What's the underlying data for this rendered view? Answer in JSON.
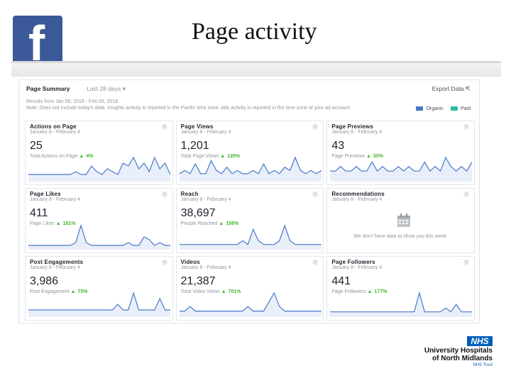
{
  "slide": {
    "title": "Page activity",
    "facebook_logo": "f"
  },
  "summary": {
    "title": "Page Summary",
    "range": "Last 28 days ▾",
    "export_label": "Export Data ⇱",
    "note": "Results from Jan 08, 2018 - Feb 05, 2018\nNote: Does not include today's data. Insights activity is reported in the Pacific time zone. Ads activity is reported in the time zone of your ad account.",
    "legend": [
      {
        "label": "Organic",
        "color": "#4a78c8"
      },
      {
        "label": "Paid",
        "color": "#2bbfa4"
      }
    ]
  },
  "cards": [
    {
      "title": "Actions on Page",
      "date": "January 8 - February 4",
      "value": "25",
      "sub": "Total Actions on Page",
      "change": "4%",
      "spark": [
        2,
        2,
        2,
        2,
        2,
        2,
        2,
        2,
        2,
        3,
        2,
        2,
        5,
        3,
        2,
        4,
        3,
        2,
        6,
        5,
        8,
        4,
        6,
        3,
        8,
        4,
        6,
        2
      ]
    },
    {
      "title": "Page Views",
      "date": "January 8 - February 4",
      "value": "1,201",
      "sub": "Total Page Views",
      "change": "120%",
      "spark": [
        2,
        3,
        2,
        5,
        2,
        2,
        6,
        3,
        2,
        4,
        2,
        3,
        2,
        2,
        3,
        2,
        5,
        2,
        3,
        2,
        4,
        3,
        7,
        3,
        2,
        3,
        2,
        3
      ]
    },
    {
      "title": "Page Previews",
      "date": "January 8 - February 4",
      "value": "43",
      "sub": "Page Previews",
      "change": "30%",
      "spark": [
        2,
        2,
        3,
        2,
        2,
        3,
        2,
        2,
        4,
        2,
        3,
        2,
        2,
        3,
        2,
        3,
        2,
        2,
        4,
        2,
        3,
        2,
        5,
        3,
        2,
        3,
        2,
        4
      ]
    },
    {
      "title": "Page Likes",
      "date": "January 8 - February 4",
      "value": "411",
      "sub": "Page Likes",
      "change": "181%",
      "spark": [
        1,
        1,
        1,
        1,
        1,
        1,
        1,
        1,
        1,
        2,
        8,
        2,
        1,
        1,
        1,
        1,
        1,
        1,
        1,
        2,
        1,
        1,
        4,
        3,
        1,
        2,
        1,
        1
      ]
    },
    {
      "title": "Reach",
      "date": "January 8 - February 4",
      "value": "38,697",
      "sub": "People Reached",
      "change": "158%",
      "spark": [
        1,
        1,
        1,
        1,
        1,
        1,
        1,
        1,
        1,
        1,
        1,
        1,
        2,
        1,
        5,
        2,
        1,
        1,
        1,
        2,
        6,
        2,
        1,
        1,
        1,
        1,
        1,
        1
      ]
    },
    {
      "title": "Recommendations",
      "date": "January 8 - February 4",
      "value": "",
      "sub": "",
      "change": "",
      "nodata": "We don't have data to show you this week."
    },
    {
      "title": "Post Engagements",
      "date": "January 8 - February 4",
      "value": "3,986",
      "sub": "Post Engagement",
      "change": "75%",
      "spark": [
        1,
        1,
        1,
        1,
        1,
        1,
        1,
        1,
        1,
        1,
        1,
        1,
        1,
        1,
        1,
        1,
        1,
        2,
        1,
        1,
        4,
        1,
        1,
        1,
        1,
        3,
        1,
        1
      ]
    },
    {
      "title": "Videos",
      "date": "January 8 - February 4",
      "value": "21,387",
      "sub": "Total Video Views",
      "change": "701%",
      "spark": [
        1,
        1,
        2,
        1,
        1,
        1,
        1,
        1,
        1,
        1,
        1,
        1,
        1,
        2,
        1,
        1,
        1,
        3,
        5,
        2,
        1,
        1,
        1,
        1,
        1,
        1,
        1,
        1
      ]
    },
    {
      "title": "Page Followers",
      "date": "January 8 - February 4",
      "value": "441",
      "sub": "Page Followers",
      "change": "177%",
      "spark": [
        1,
        1,
        1,
        1,
        1,
        1,
        1,
        1,
        1,
        1,
        1,
        1,
        1,
        1,
        1,
        1,
        1,
        6,
        1,
        1,
        1,
        1,
        2,
        1,
        3,
        1,
        1,
        1
      ]
    }
  ],
  "branding": {
    "badge": "NHS",
    "line1": "University Hospitals",
    "line2": "of North Midlands",
    "line3": "NHS Trust"
  }
}
